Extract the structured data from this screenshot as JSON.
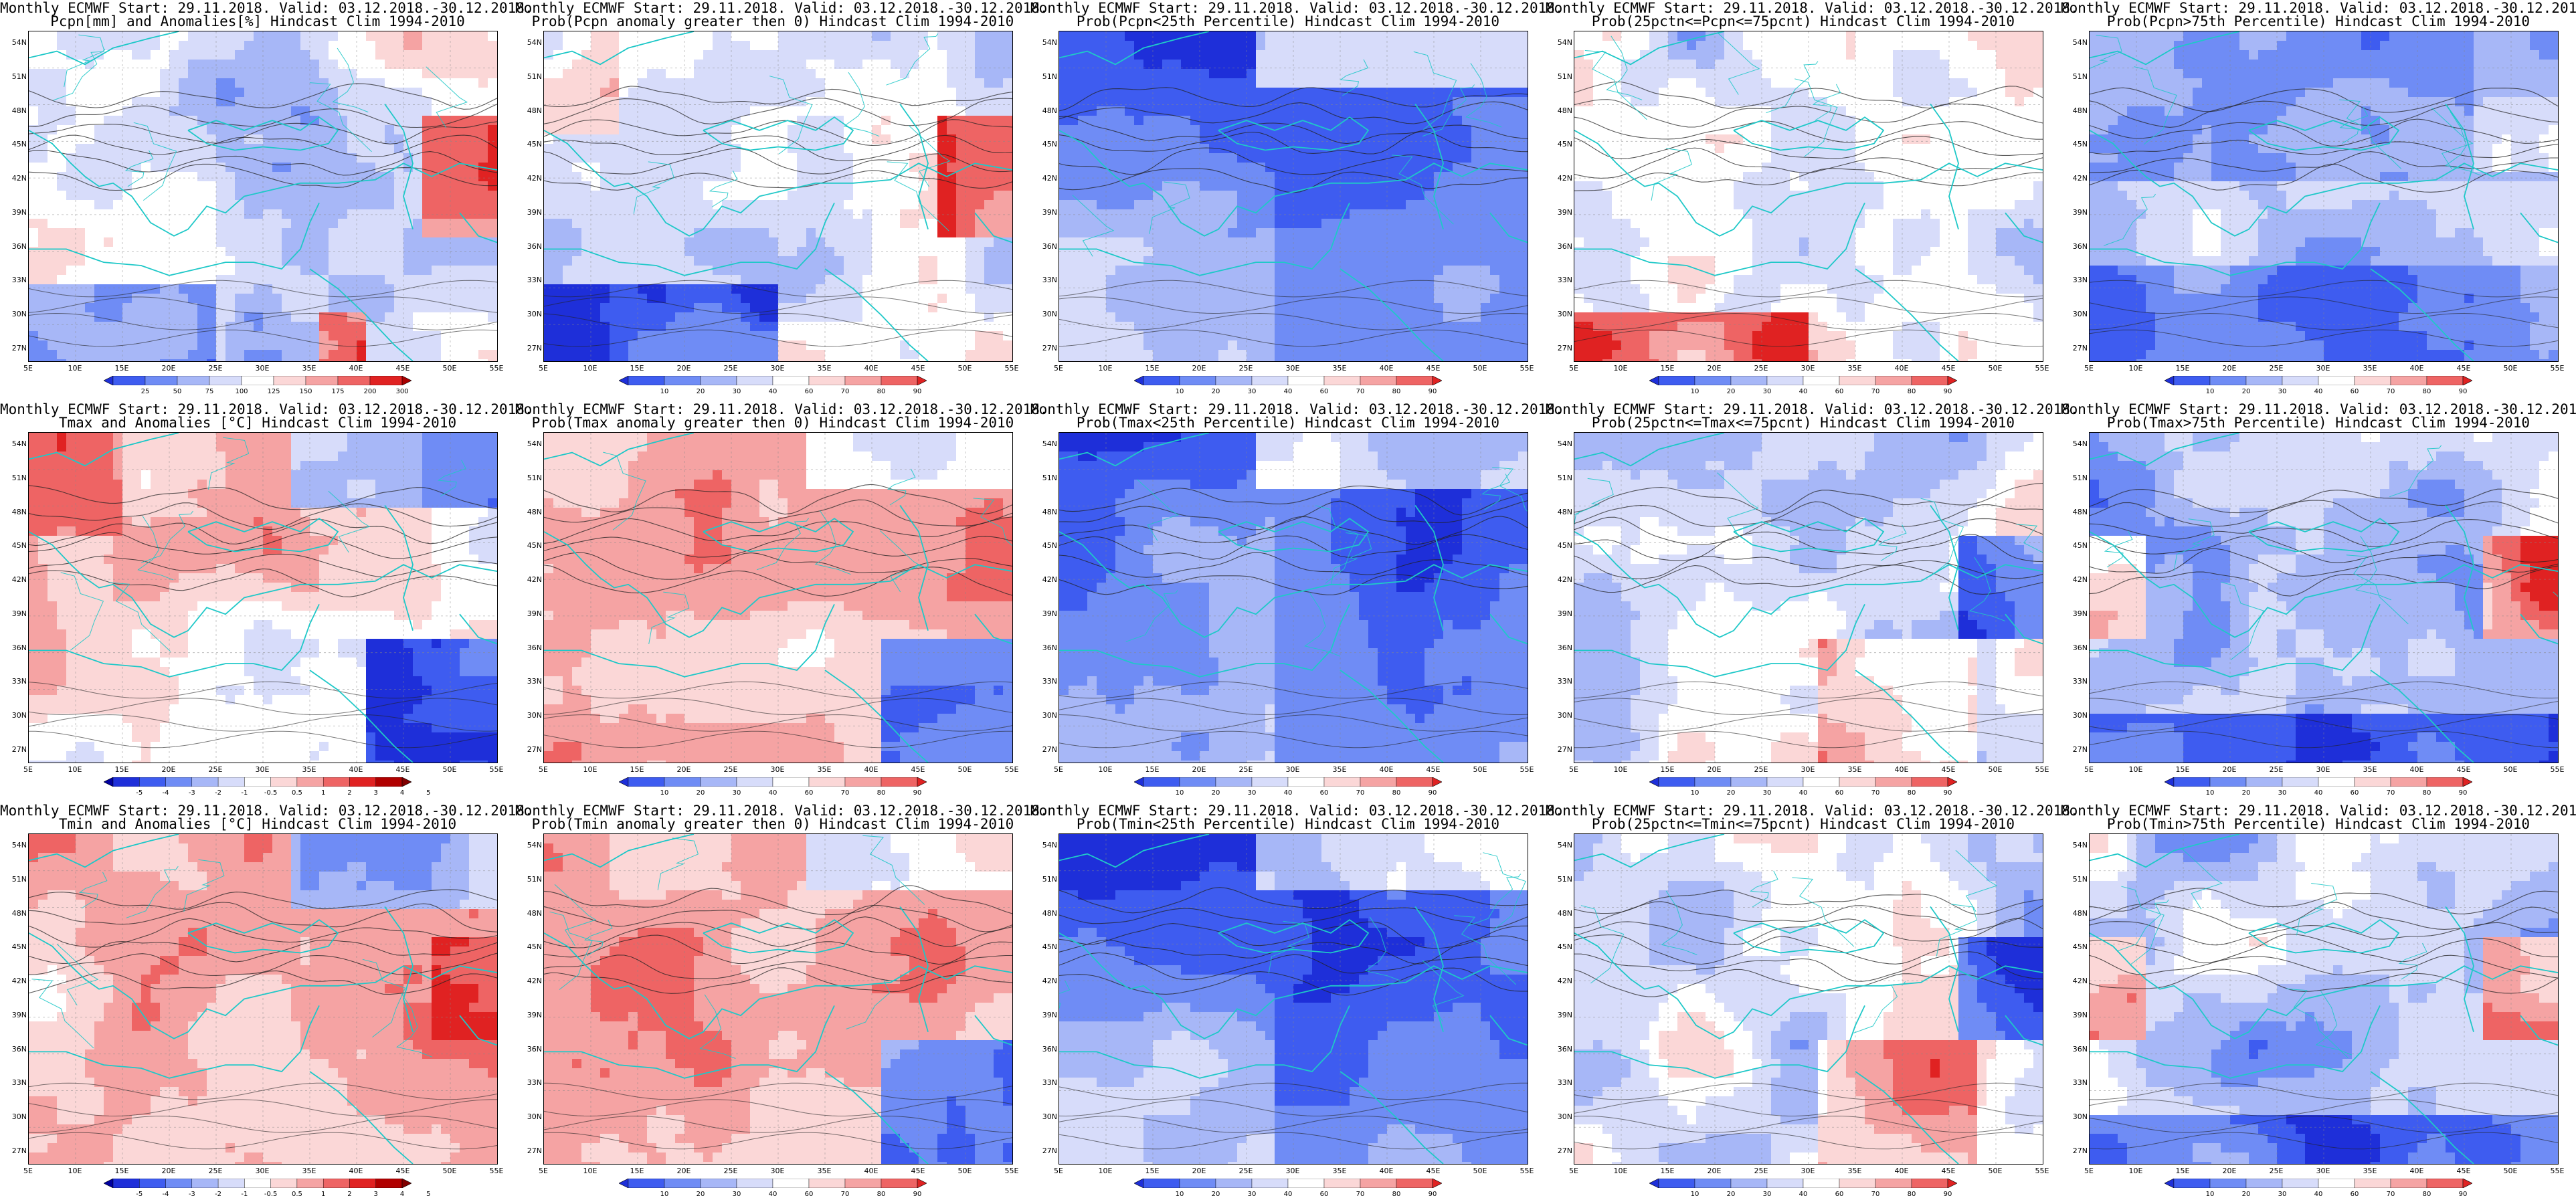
{
  "latitudes": [
    "54N",
    "51N",
    "48N",
    "45N",
    "42N",
    "39N",
    "36N",
    "33N",
    "30N",
    "27N"
  ],
  "longitudes": [
    "5E",
    "10E",
    "15E",
    "20E",
    "25E",
    "30E",
    "35E",
    "40E",
    "45E",
    "50E",
    "55E"
  ],
  "colorbars": {
    "anomaly_pcpn": {
      "ticks": [
        "25",
        "50",
        "75",
        "100",
        "125",
        "150",
        "175",
        "200",
        "300"
      ],
      "colors": [
        "#1e2fd9",
        "#3e5cf0",
        "#6f8cf5",
        "#a7b7f7",
        "#d7dcfa",
        "#ffffff",
        "#fbd7d7",
        "#f5a3a3",
        "#ee6464",
        "#e02222",
        "#a80000"
      ]
    },
    "anomaly_temp": {
      "ticks": [
        "-5",
        "-4",
        "-3",
        "-2",
        "-1",
        "-0.5",
        "0.5",
        "1",
        "2",
        "3",
        "4",
        "5"
      ],
      "colors": [
        "#0000a0",
        "#1e2fd9",
        "#3e5cf0",
        "#6f8cf5",
        "#a7b7f7",
        "#d7dcfa",
        "#ffffff",
        "#fbd7d7",
        "#f5a3a3",
        "#ee6464",
        "#e02222",
        "#b00000",
        "#800000"
      ]
    },
    "probability": {
      "ticks": [
        "10",
        "20",
        "30",
        "40",
        "60",
        "70",
        "80",
        "90"
      ],
      "colors": [
        "#1e2fd9",
        "#3e5cf0",
        "#6f8cf5",
        "#a7b7f7",
        "#d7dcfa",
        "#ffffff",
        "#fbd7d7",
        "#f5a3a3",
        "#ee6464",
        "#e02222"
      ]
    }
  },
  "panels": [
    {
      "title1": "Monthly ECMWF Start: 29.11.2018. Valid: 03.12.2018.-30.12.2018.",
      "title2": "Pcpn[mm] and Anomalies[%] Hindcast Clim 1994-2010",
      "scale": "anomaly_pcpn",
      "field": "pcpn_anom"
    },
    {
      "title1": "Monthly ECMWF Start: 29.11.2018. Valid: 03.12.2018.-30.12.2018.",
      "title2": "Prob(Pcpn anomaly greater then 0) Hindcast Clim 1994-2010",
      "scale": "probability",
      "field": "pcpn_pos"
    },
    {
      "title1": "Monthly ECMWF Start: 29.11.2018. Valid: 03.12.2018.-30.12.2018.",
      "title2": "Prob(Pcpn<25th Percentile) Hindcast Clim 1994-2010",
      "scale": "probability",
      "field": "mostly_low"
    },
    {
      "title1": "Monthly ECMWF Start: 29.11.2018. Valid: 03.12.2018.-30.12.2018.",
      "title2": "Prob(25pctn<=Pcpn<=75pcnt) Hindcast Clim 1994-2010",
      "scale": "probability",
      "field": "mixed_pcpn_mid"
    },
    {
      "title1": "Monthly ECMWF Start: 29.11.2018. Valid: 03.12.2018.-30.12.2018.",
      "title2": "Prob(Pcpn>75th Percentile) Hindcast Clim 1994-2010",
      "scale": "probability",
      "field": "mostly_low_b"
    },
    {
      "title1": "Monthly ECMWF Start: 29.11.2018. Valid: 03.12.2018.-30.12.2018.",
      "title2": "Tmax and Anomalies [°C] Hindcast Clim 1994-2010",
      "scale": "anomaly_temp",
      "field": "tmax_anom"
    },
    {
      "title1": "Monthly ECMWF Start: 29.11.2018. Valid: 03.12.2018.-30.12.2018.",
      "title2": "Prob(Tmax anomaly greater then 0) Hindcast Clim 1994-2010",
      "scale": "probability",
      "field": "warm"
    },
    {
      "title1": "Monthly ECMWF Start: 29.11.2018. Valid: 03.12.2018.-30.12.2018.",
      "title2": "Prob(Tmax<25th Percentile) Hindcast Clim 1994-2010",
      "scale": "probability",
      "field": "mostly_low"
    },
    {
      "title1": "Monthly ECMWF Start: 29.11.2018. Valid: 03.12.2018.-30.12.2018.",
      "title2": "Prob(25pctn<=Tmax<=75pcnt) Hindcast Clim 1994-2010",
      "scale": "probability",
      "field": "mixed_mid"
    },
    {
      "title1": "Monthly ECMWF Start: 29.11.2018. Valid: 03.12.2018.-30.12.2018.",
      "title2": "Prob(Tmax>75th Percentile) Hindcast Clim 1994-2010",
      "scale": "probability",
      "field": "mixed_high"
    },
    {
      "title1": "Monthly ECMWF Start: 29.11.2018. Valid: 03.12.2018.-30.12.2018.",
      "title2": "Tmin and Anomalies [°C] Hindcast Clim 1994-2010",
      "scale": "anomaly_temp",
      "field": "tmin_anom"
    },
    {
      "title1": "Monthly ECMWF Start: 29.11.2018. Valid: 03.12.2018.-30.12.2018.",
      "title2": "Prob(Tmin anomaly greater then 0) Hindcast Clim 1994-2010",
      "scale": "probability",
      "field": "warm"
    },
    {
      "title1": "Monthly ECMWF Start: 29.11.2018. Valid: 03.12.2018.-30.12.2018.",
      "title2": "Prob(Tmin<25th Percentile) Hindcast Clim 1994-2010",
      "scale": "probability",
      "field": "mostly_low"
    },
    {
      "title1": "Monthly ECMWF Start: 29.11.2018. Valid: 03.12.2018.-30.12.2018.",
      "title2": "Prob(25pctn<=Tmin<=75pcnt) Hindcast Clim 1994-2010",
      "scale": "probability",
      "field": "mixed_mid"
    },
    {
      "title1": "Monthly ECMWF Start: 29.11.2018. Valid: 03.12.2018.-30.12.2018.",
      "title2": "Prob(Tmin>75th Percentile) Hindcast Clim 1994-2010",
      "scale": "probability",
      "field": "mixed_high"
    }
  ]
}
